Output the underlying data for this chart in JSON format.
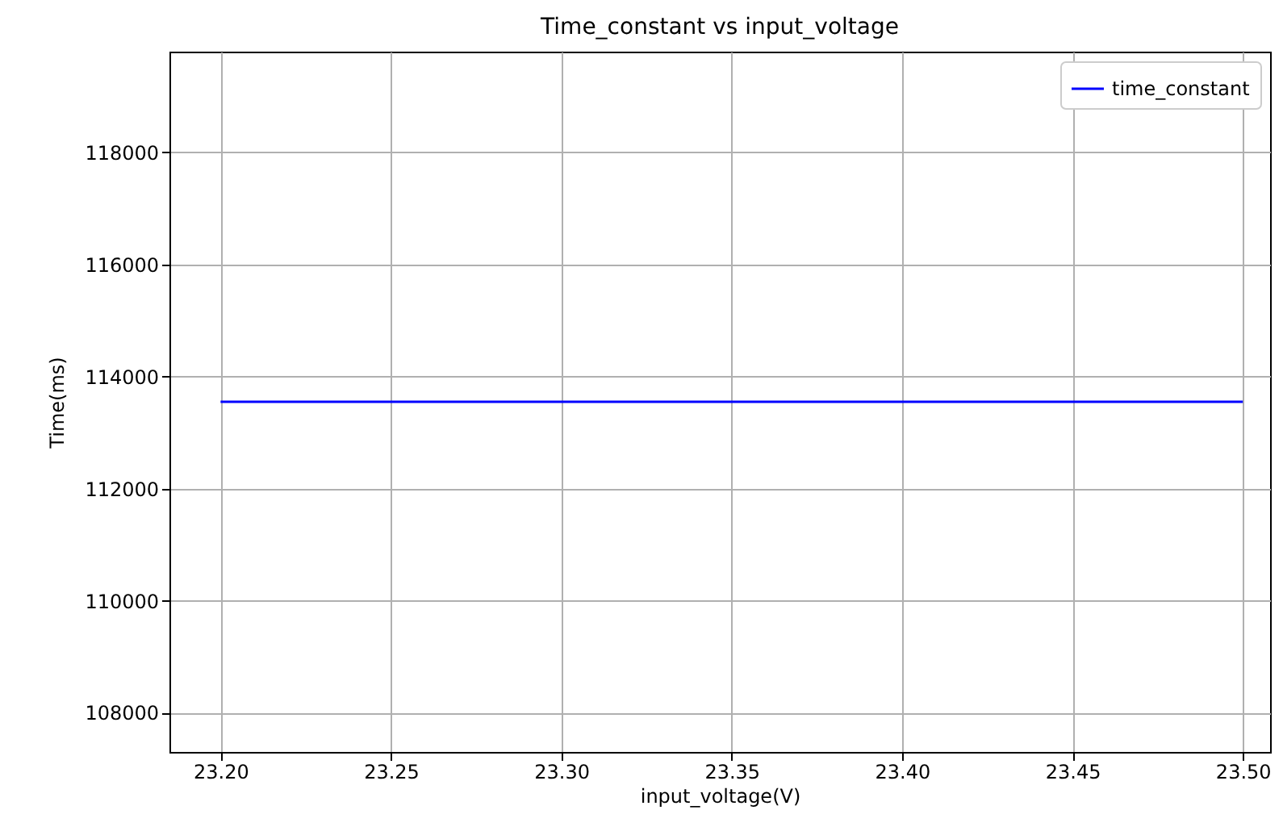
{
  "chart_data": {
    "type": "line",
    "title": "Time_constant vs input_voltage",
    "xlabel": "input_voltage(V)",
    "ylabel": "Time(ms)",
    "x": [
      23.2,
      23.5
    ],
    "series": [
      {
        "name": "time_constant",
        "color": "#0000ff",
        "values": [
          113550,
          113550
        ]
      }
    ],
    "xlim": [
      23.185,
      23.508
    ],
    "xticks": [
      {
        "value": 23.2,
        "label": "23.20"
      },
      {
        "value": 23.25,
        "label": "23.25"
      },
      {
        "value": 23.3,
        "label": "23.30"
      },
      {
        "value": 23.35,
        "label": "23.35"
      },
      {
        "value": 23.4,
        "label": "23.40"
      },
      {
        "value": 23.45,
        "label": "23.45"
      },
      {
        "value": 23.5,
        "label": "23.50"
      }
    ],
    "ylim": [
      107300,
      119800
    ],
    "yticks": [
      108000,
      110000,
      112000,
      114000,
      116000,
      118000
    ],
    "grid": true,
    "legend": "top right",
    "marker": "none",
    "line_style": "solid"
  }
}
